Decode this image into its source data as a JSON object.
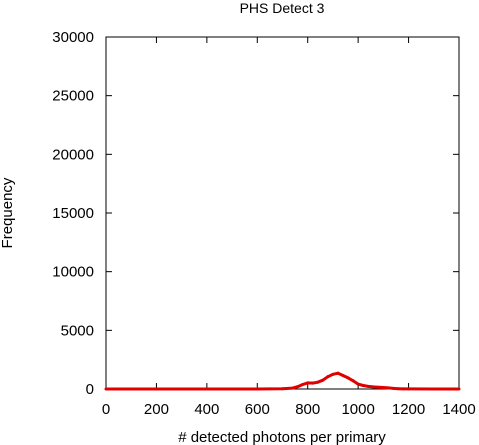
{
  "chart_data": {
    "type": "line",
    "title": "PHS Detect 3",
    "xlabel": "# detected photons per primary",
    "ylabel": "Frequency",
    "xlim": [
      0,
      1400
    ],
    "ylim": [
      0,
      30000
    ],
    "xticks": [
      0,
      200,
      400,
      600,
      800,
      1000,
      1200,
      1400
    ],
    "yticks": [
      0,
      5000,
      10000,
      15000,
      20000,
      25000,
      30000
    ],
    "grid": false,
    "series_color": "#e00000",
    "series": [
      {
        "x": [
          0,
          100,
          200,
          300,
          400,
          500,
          600,
          700,
          740,
          760,
          780,
          800,
          820,
          840,
          860,
          880,
          900,
          920,
          940,
          960,
          980,
          1000,
          1020,
          1040,
          1060,
          1080,
          1100,
          1120,
          1140,
          1160,
          1180,
          1200,
          1300,
          1400
        ],
        "y": [
          0,
          0,
          0,
          0,
          0,
          0,
          0,
          20,
          80,
          200,
          380,
          520,
          500,
          580,
          750,
          1050,
          1250,
          1350,
          1150,
          950,
          700,
          420,
          300,
          220,
          180,
          150,
          130,
          90,
          50,
          25,
          10,
          5,
          0,
          0
        ]
      }
    ]
  }
}
